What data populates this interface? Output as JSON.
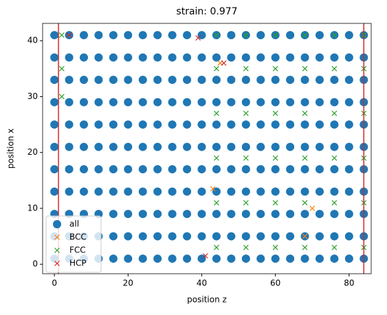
{
  "chart_data": {
    "type": "scatter",
    "title": "strain: 0.977",
    "x_label": "position z",
    "y_label": "position x",
    "xlim": [
      -3.2,
      86
    ],
    "ylim": [
      -1.7,
      43.1
    ],
    "xticks": [
      0,
      20,
      40,
      60,
      80
    ],
    "yticks": [
      0,
      10,
      20,
      30,
      40
    ],
    "vlines": [
      1.1,
      84.0
    ],
    "vline_color": "#d62728",
    "legend": "lower left",
    "series": [
      {
        "name": "all",
        "color": "#1f77b4",
        "marker": "o",
        "x": [
          0,
          4,
          8,
          12,
          16,
          20,
          24,
          28,
          32,
          36,
          40,
          44,
          48,
          52,
          56,
          60,
          64,
          68,
          72,
          76,
          80,
          84,
          0,
          4,
          8,
          12,
          16,
          20,
          24,
          28,
          32,
          36,
          40,
          44,
          48,
          52,
          56,
          60,
          64,
          68,
          72,
          76,
          80,
          84,
          0,
          4,
          8,
          12,
          16,
          20,
          24,
          28,
          32,
          36,
          40,
          44,
          48,
          52,
          56,
          60,
          64,
          68,
          72,
          76,
          80,
          84,
          0,
          4,
          8,
          12,
          16,
          20,
          24,
          28,
          32,
          36,
          40,
          44,
          48,
          52,
          56,
          60,
          64,
          68,
          72,
          76,
          80,
          84,
          0,
          4,
          8,
          12,
          16,
          20,
          24,
          28,
          32,
          36,
          40,
          44,
          48,
          52,
          56,
          60,
          64,
          68,
          72,
          76,
          80,
          84,
          0,
          4,
          8,
          12,
          16,
          20,
          24,
          28,
          32,
          36,
          40,
          44,
          48,
          52,
          56,
          60,
          64,
          68,
          72,
          76,
          80,
          84,
          0,
          4,
          8,
          12,
          16,
          20,
          24,
          28,
          32,
          36,
          40,
          44,
          48,
          52,
          56,
          60,
          64,
          68,
          72,
          76,
          80,
          84,
          0,
          4,
          8,
          12,
          16,
          20,
          24,
          28,
          32,
          36,
          40,
          44,
          48,
          52,
          56,
          60,
          64,
          68,
          72,
          76,
          80,
          84,
          0,
          4,
          8,
          12,
          16,
          20,
          24,
          28,
          32,
          36,
          40,
          44,
          48,
          52,
          56,
          60,
          64,
          68,
          72,
          76,
          80,
          84,
          0,
          4,
          8,
          12,
          16,
          20,
          24,
          28,
          32,
          36,
          40,
          44,
          48,
          52,
          56,
          60,
          64,
          68,
          72,
          76,
          80,
          84,
          0,
          4,
          8,
          12,
          16,
          20,
          24,
          28,
          32,
          36,
          40,
          44,
          48,
          52,
          56,
          60,
          64,
          68,
          72,
          76,
          80,
          84
        ],
        "y": [
          1,
          1,
          1,
          1,
          1,
          1,
          1,
          1,
          1,
          1,
          1,
          1,
          1,
          1,
          1,
          1,
          1,
          1,
          1,
          1,
          1,
          1,
          5,
          5,
          5,
          5,
          5,
          5,
          5,
          5,
          5,
          5,
          5,
          5,
          5,
          5,
          5,
          5,
          5,
          5,
          5,
          5,
          5,
          5,
          9,
          9,
          9,
          9,
          9,
          9,
          9,
          9,
          9,
          9,
          9,
          9,
          9,
          9,
          9,
          9,
          9,
          9,
          9,
          9,
          9,
          9,
          13,
          13,
          13,
          13,
          13,
          13,
          13,
          13,
          13,
          13,
          13,
          13,
          13,
          13,
          13,
          13,
          13,
          13,
          13,
          13,
          13,
          13,
          17,
          17,
          17,
          17,
          17,
          17,
          17,
          17,
          17,
          17,
          17,
          17,
          17,
          17,
          17,
          17,
          17,
          17,
          17,
          17,
          17,
          17,
          21,
          21,
          21,
          21,
          21,
          21,
          21,
          21,
          21,
          21,
          21,
          21,
          21,
          21,
          21,
          21,
          21,
          21,
          21,
          21,
          21,
          21,
          25,
          25,
          25,
          25,
          25,
          25,
          25,
          25,
          25,
          25,
          25,
          25,
          25,
          25,
          25,
          25,
          25,
          25,
          25,
          25,
          25,
          25,
          29,
          29,
          29,
          29,
          29,
          29,
          29,
          29,
          29,
          29,
          29,
          29,
          29,
          29,
          29,
          29,
          29,
          29,
          29,
          29,
          29,
          29,
          33,
          33,
          33,
          33,
          33,
          33,
          33,
          33,
          33,
          33,
          33,
          33,
          33,
          33,
          33,
          33,
          33,
          33,
          33,
          33,
          33,
          33,
          37,
          37,
          37,
          37,
          37,
          37,
          37,
          37,
          37,
          37,
          37,
          37,
          37,
          37,
          37,
          37,
          37,
          37,
          37,
          37,
          37,
          37,
          41,
          41,
          41,
          41,
          41,
          41,
          41,
          41,
          41,
          41,
          41,
          41,
          41,
          41,
          41,
          41,
          41,
          41,
          41,
          41,
          41,
          41
        ]
      },
      {
        "name": "BCC",
        "color": "#ff7f0e",
        "marker": "x",
        "x": [
          43,
          45,
          70,
          68
        ],
        "y": [
          13.5,
          36,
          10,
          5
        ]
      },
      {
        "name": "FCC",
        "color": "#2ca02c",
        "marker": "x",
        "x": [
          44,
          52,
          60,
          68,
          76,
          84,
          44,
          52,
          60,
          68,
          76,
          84,
          44,
          52,
          60,
          68,
          76,
          84,
          44,
          52,
          60,
          68,
          76,
          84,
          44,
          52,
          60,
          68,
          76,
          84,
          44,
          52,
          60,
          68,
          76,
          84,
          2,
          2,
          2
        ],
        "y": [
          3,
          3,
          3,
          3,
          3,
          3,
          11,
          11,
          11,
          11,
          11,
          11,
          19,
          19,
          19,
          19,
          19,
          19,
          27,
          27,
          27,
          27,
          27,
          27,
          35,
          35,
          35,
          35,
          35,
          35,
          41,
          41,
          41,
          41,
          41,
          41,
          30,
          35,
          41
        ]
      },
      {
        "name": "HCP",
        "color": "#d62728",
        "marker": "x",
        "x": [
          4,
          39,
          46,
          41
        ],
        "y": [
          41,
          40.5,
          36,
          1.5
        ]
      }
    ]
  }
}
